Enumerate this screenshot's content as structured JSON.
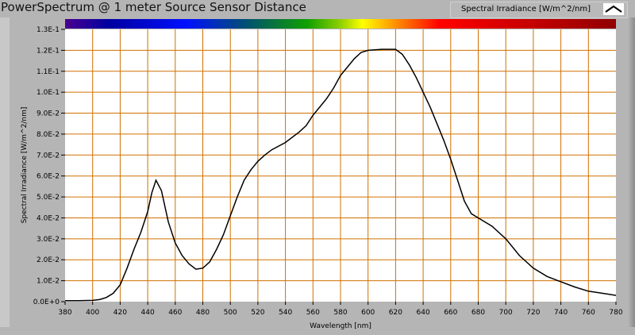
{
  "title": "PowerSpectrum @ 1 meter Source Sensor Distance",
  "legend": {
    "label": "Spectral Irradiance [W/m^2/nm]"
  },
  "colors": {
    "grid": "#d07000",
    "curve": "#000000",
    "plot_bg": "#ffffff"
  },
  "chart_data": {
    "type": "line",
    "title": "PowerSpectrum @ 1 meter Source Sensor Distance",
    "xlabel": "Wavelength [nm]",
    "ylabel": "Spectral Irradiance [W/m^2/nm]",
    "xlim": [
      380,
      780
    ],
    "ylim": [
      0,
      0.13
    ],
    "xticks": [
      "380",
      "400",
      "420",
      "440",
      "460",
      "480",
      "500",
      "520",
      "540",
      "560",
      "580",
      "600",
      "620",
      "640",
      "660",
      "680",
      "700",
      "720",
      "740",
      "760",
      "780"
    ],
    "yticks": [
      "0.0E+0",
      "1.0E-2",
      "2.0E-2",
      "3.0E-2",
      "4.0E-2",
      "5.0E-2",
      "6.0E-2",
      "7.0E-2",
      "8.0E-2",
      "9.0E-2",
      "1.0E-1",
      "1.1E-1",
      "1.2E-1",
      "1.3E-1"
    ],
    "grid": true,
    "series": [
      {
        "name": "Spectral Irradiance [W/m^2/nm]",
        "x": [
          380,
          390,
          400,
          405,
          410,
          415,
          420,
          425,
          430,
          435,
          440,
          443,
          446,
          450,
          455,
          460,
          465,
          470,
          475,
          480,
          485,
          490,
          495,
          500,
          505,
          510,
          515,
          520,
          525,
          530,
          540,
          550,
          555,
          560,
          565,
          570,
          575,
          580,
          585,
          590,
          595,
          600,
          610,
          620,
          625,
          630,
          635,
          640,
          645,
          650,
          655,
          660,
          665,
          670,
          675,
          680,
          690,
          700,
          710,
          720,
          730,
          740,
          750,
          760,
          770,
          780
        ],
        "y": [
          0.0005,
          0.0005,
          0.0006,
          0.001,
          0.002,
          0.004,
          0.008,
          0.016,
          0.025,
          0.033,
          0.043,
          0.052,
          0.058,
          0.053,
          0.038,
          0.028,
          0.022,
          0.018,
          0.0155,
          0.016,
          0.019,
          0.025,
          0.032,
          0.041,
          0.05,
          0.058,
          0.063,
          0.067,
          0.07,
          0.0725,
          0.076,
          0.081,
          0.084,
          0.089,
          0.093,
          0.097,
          0.102,
          0.108,
          0.112,
          0.116,
          0.119,
          0.12,
          0.1205,
          0.1205,
          0.118,
          0.113,
          0.107,
          0.1,
          0.093,
          0.085,
          0.077,
          0.068,
          0.058,
          0.048,
          0.042,
          0.04,
          0.036,
          0.03,
          0.022,
          0.016,
          0.012,
          0.0095,
          0.007,
          0.005,
          0.004,
          0.003
        ]
      }
    ]
  }
}
